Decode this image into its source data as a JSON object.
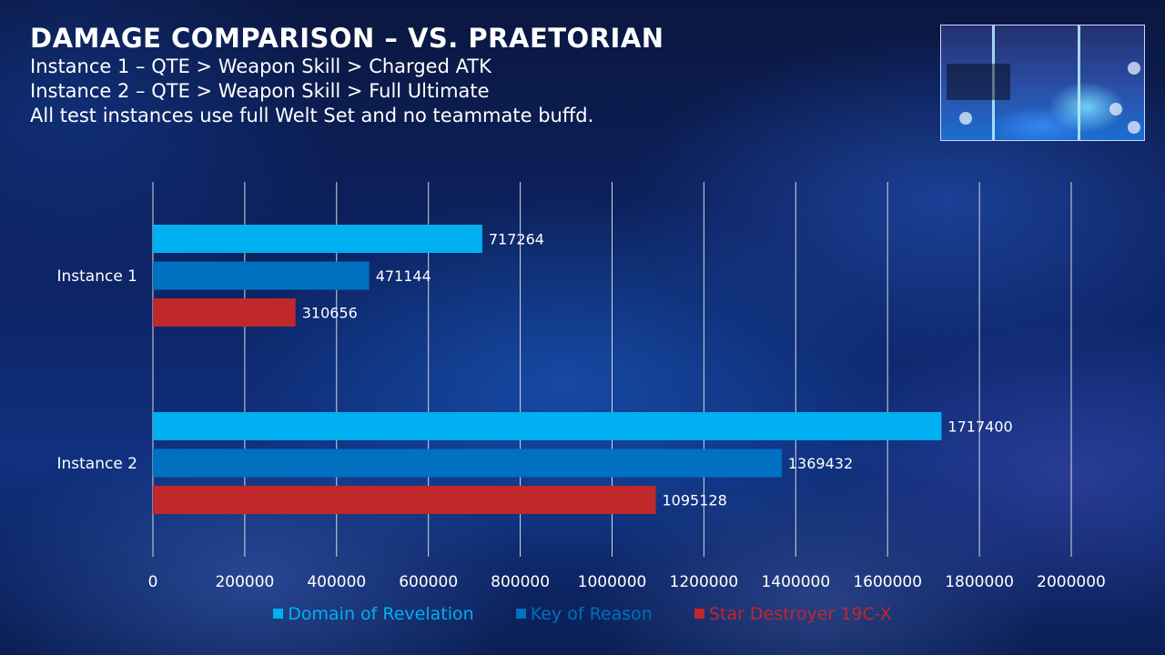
{
  "title": "DAMAGE COMPARISON – VS. PRAETORIAN",
  "subtitle_lines": [
    "Instance 1 – QTE > Weapon Skill > Charged ATK",
    "Instance 2 – QTE > Weapon Skill > Full Ultimate",
    "All test instances use full Welt Set and no teammate buffd."
  ],
  "chart_data": {
    "type": "bar",
    "orientation": "horizontal",
    "categories": [
      "Instance 1",
      "Instance 2"
    ],
    "series": [
      {
        "name": "Domain of Revelation",
        "color": "#00b0f0",
        "values": [
          717264,
          1717400
        ]
      },
      {
        "name": "Key of Reason",
        "color": "#0070c0",
        "values": [
          471144,
          1369432
        ]
      },
      {
        "name": "Star Destroyer 19C-X",
        "color": "#c0282c",
        "values": [
          310656,
          1095128
        ]
      }
    ],
    "xlim": [
      0,
      2000000
    ],
    "x_ticks": [
      0,
      200000,
      400000,
      600000,
      800000,
      1000000,
      1200000,
      1400000,
      1600000,
      1800000,
      2000000
    ],
    "grid": true,
    "legend_position": "bottom"
  }
}
